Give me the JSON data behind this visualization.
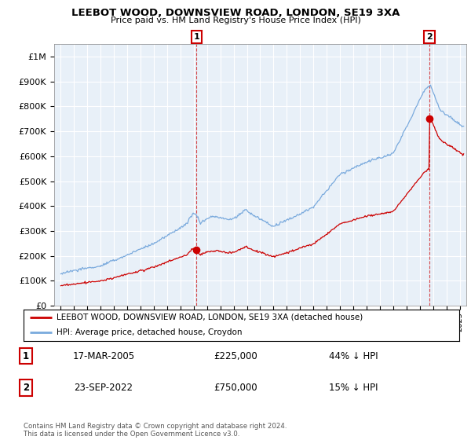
{
  "title": "LEEBOT WOOD, DOWNSVIEW ROAD, LONDON, SE19 3XA",
  "subtitle": "Price paid vs. HM Land Registry's House Price Index (HPI)",
  "background_color": "#ffffff",
  "plot_bg_color": "#e8f0f8",
  "grid_color": "#ffffff",
  "hpi_color": "#7aaadd",
  "sale_color": "#cc0000",
  "ylim_min": 0,
  "ylim_max": 1050000,
  "yticks": [
    0,
    100000,
    200000,
    300000,
    400000,
    500000,
    600000,
    700000,
    800000,
    900000,
    1000000
  ],
  "ytick_labels": [
    "£0",
    "£100K",
    "£200K",
    "£300K",
    "£400K",
    "£500K",
    "£600K",
    "£700K",
    "£800K",
    "£900K",
    "£1M"
  ],
  "sale1_x": 2005.21,
  "sale1_y": 225000,
  "sale1_label": "1",
  "sale2_x": 2022.73,
  "sale2_y": 750000,
  "sale2_label": "2",
  "legend_line1": "LEEBOT WOOD, DOWNSVIEW ROAD, LONDON, SE19 3XA (detached house)",
  "legend_line2": "HPI: Average price, detached house, Croydon",
  "table_row1_num": "1",
  "table_row1_date": "17-MAR-2005",
  "table_row1_price": "£225,000",
  "table_row1_hpi": "44% ↓ HPI",
  "table_row2_num": "2",
  "table_row2_date": "23-SEP-2022",
  "table_row2_price": "£750,000",
  "table_row2_hpi": "15% ↓ HPI",
  "footnote": "Contains HM Land Registry data © Crown copyright and database right 2024.\nThis data is licensed under the Open Government Licence v3.0.",
  "xmin": 1994.5,
  "xmax": 2025.5
}
